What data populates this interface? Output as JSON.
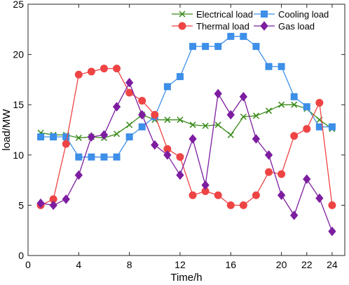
{
  "chart_data": {
    "type": "line",
    "xlabel": "Time/h",
    "ylabel": "load/MW",
    "xlim": [
      0,
      25
    ],
    "ylim": [
      0,
      25
    ],
    "xticks": [
      0,
      4,
      8,
      12,
      16,
      20,
      22,
      24
    ],
    "yticks": [
      0,
      5,
      10,
      15,
      20,
      25
    ],
    "grid": false,
    "legend_position": "top-right",
    "x": [
      1,
      2,
      3,
      4,
      5,
      6,
      7,
      8,
      9,
      10,
      11,
      12,
      13,
      14,
      15,
      16,
      17,
      18,
      19,
      20,
      21,
      22,
      23,
      24
    ],
    "series": [
      {
        "name": "Electrical load",
        "color": "#3a8a1a",
        "marker": "x",
        "values": [
          12.2,
          12.0,
          12.0,
          11.7,
          11.8,
          11.7,
          12.1,
          13.0,
          14.0,
          13.5,
          13.5,
          13.5,
          13.0,
          12.9,
          13.0,
          12.0,
          13.8,
          13.9,
          14.4,
          15.0,
          15.0,
          14.6,
          13.5,
          12.6
        ]
      },
      {
        "name": "Cooling load",
        "color": "#3d8fe8",
        "marker": "square",
        "values": [
          11.8,
          11.8,
          11.8,
          9.8,
          9.8,
          9.8,
          9.8,
          11.8,
          12.8,
          13.8,
          16.8,
          17.8,
          20.8,
          20.8,
          20.8,
          21.8,
          21.8,
          20.8,
          18.8,
          18.8,
          15.8,
          14.8,
          12.8,
          12.8
        ]
      },
      {
        "name": "Thermal load",
        "color": "#ee4444",
        "marker": "circle",
        "values": [
          5.0,
          5.6,
          11.1,
          18.0,
          18.3,
          18.6,
          18.6,
          16.2,
          15.4,
          14.0,
          10.6,
          9.8,
          6.0,
          6.4,
          6.0,
          5.0,
          5.0,
          6.0,
          8.3,
          8.1,
          11.9,
          12.6,
          15.2,
          5.0
        ]
      },
      {
        "name": "Gas load",
        "color": "#7d1ea0",
        "marker": "diamond",
        "values": [
          5.2,
          5.0,
          5.6,
          8.0,
          11.8,
          12.0,
          14.8,
          17.2,
          14.0,
          11.0,
          10.0,
          8.0,
          11.6,
          7.0,
          16.1,
          14.0,
          15.8,
          11.6,
          10.0,
          6.0,
          4.0,
          7.6,
          5.7,
          2.4
        ]
      }
    ]
  }
}
